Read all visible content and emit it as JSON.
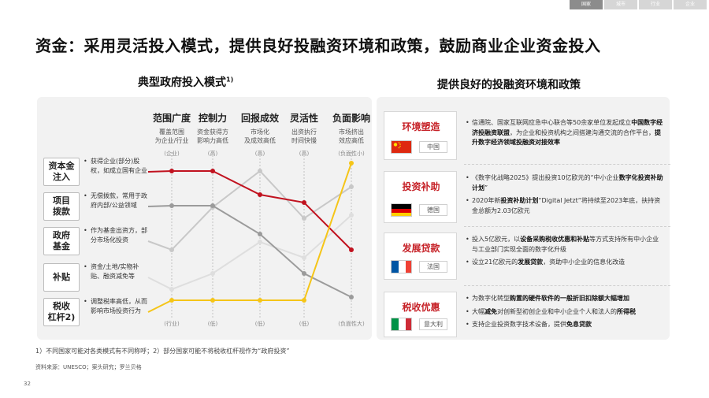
{
  "nav": {
    "tabs": [
      "国家",
      "城市",
      "行业",
      "企业"
    ],
    "active": 0
  },
  "title": "资金：采用灵活投入模式，提供良好投融资环境和政策，鼓励商业企业资金投入",
  "left": {
    "subtitle": "典型政府投入模式",
    "subtitle_sup": "1)",
    "dimensions": [
      {
        "name": "范围广度",
        "desc": [
          "覆盖范围",
          "为企业/行业"
        ],
        "top": "(企业)",
        "bottom": "(行业)"
      },
      {
        "name": "控制力",
        "desc": [
          "资金获得方",
          "影响力高低"
        ],
        "top": "(高)",
        "bottom": "(低)"
      },
      {
        "name": "回报成效",
        "desc": [
          "市场化",
          "及成效高低"
        ],
        "top": "(高)",
        "bottom": "(低)"
      },
      {
        "name": "灵活性",
        "desc": [
          "出资执行",
          "时间快慢"
        ],
        "top": "(高)",
        "bottom": "(低)"
      },
      {
        "name": "负面影响",
        "desc": [
          "市场挤出",
          "效应高低"
        ],
        "top": "(负面性小)",
        "bottom": "(负面性大)"
      }
    ],
    "modes": [
      {
        "name": [
          "资本金",
          "注入"
        ],
        "desc": "获得企业(部分)股权，如成立国有企业",
        "color": "#c1121f",
        "levels": [
          0.1,
          0.1,
          0.25,
          0.3,
          0.6
        ]
      },
      {
        "name": [
          "项目",
          "拨款"
        ],
        "desc": "无偿拨款，常用于政府内部/公益领域",
        "color": "#9b9b9b",
        "levels": [
          0.32,
          0.32,
          0.5,
          0.75,
          0.9
        ]
      },
      {
        "name": [
          "政府",
          "基金"
        ],
        "desc": "作为基金出资方，部分市场化投资",
        "color": "#c8c8c8",
        "levels": [
          0.6,
          0.33,
          0.1,
          0.4,
          0.2
        ]
      },
      {
        "name": [
          "补贴"
        ],
        "desc": "资金/土地/实物补贴、融资减免等",
        "color": "#dedede",
        "levels": [
          0.85,
          0.75,
          0.55,
          0.65,
          0.38
        ]
      },
      {
        "name": [
          "税收",
          "杠杆2)"
        ],
        "desc": "调整税率高低，从而影响市场投资行为",
        "color": "#f5c518",
        "levels": [
          0.92,
          0.92,
          0.92,
          0.92,
          0.05
        ]
      }
    ]
  },
  "right": {
    "subtitle": "提供良好的投融资环境和政策",
    "rows": [
      {
        "label": "环境塑造",
        "country": "中国",
        "flag": "cn",
        "items": [
          [
            {
              "t": "信通院、国家互联网应急中心联合等50余家单位发起成立"
            },
            {
              "t": "中国数字经济投融资联盟",
              "b": true
            },
            {
              "t": "，为企业和投资机构之间搭建沟通交流的合作平台，"
            },
            {
              "t": "提升数字经济领域投融资对接效率",
              "b": true
            }
          ]
        ]
      },
      {
        "label": "投资补助",
        "country": "德国",
        "flag": "de",
        "items": [
          [
            {
              "t": "《数字化战略2025》提出投资10亿欧元的“中小企业"
            },
            {
              "t": "数字化投资补助计划",
              "b": true
            },
            {
              "t": "”"
            }
          ],
          [
            {
              "t": "2020年新"
            },
            {
              "t": "投资补助计划",
              "b": true
            },
            {
              "t": "“Digital Jetzt“将持续至2023年底，扶持资金总额为2.03亿欧元"
            }
          ]
        ]
      },
      {
        "label": "发展贷款",
        "country": "法国",
        "flag": "fr",
        "items": [
          [
            {
              "t": "投入5亿欧元，以"
            },
            {
              "t": "设备采购税收优惠和补贴",
              "b": true
            },
            {
              "t": "等方式支持所有中小企业与工业部门实现全面的数字化升级"
            }
          ],
          [
            {
              "t": "设立21亿欧元的"
            },
            {
              "t": "发展贷款",
              "b": true
            },
            {
              "t": "，资助中小企业的信息化改造"
            }
          ]
        ]
      },
      {
        "label": "税收优惠",
        "country": "意大利",
        "flag": "it",
        "items": [
          [
            {
              "t": "为数字化转型"
            },
            {
              "t": "购置的硬件软件的一般折旧扣除额大幅增加",
              "b": true
            }
          ],
          [
            {
              "t": "大幅"
            },
            {
              "t": "减免",
              "b": true
            },
            {
              "t": "对创新型初创企业和中小企业个人和法人的"
            },
            {
              "t": "所得税",
              "b": true
            }
          ],
          [
            {
              "t": "支持企业投资数字技术设备，提供"
            },
            {
              "t": "免息贷款",
              "b": true
            }
          ]
        ]
      }
    ]
  },
  "footnote": "1）不同国家可能对各类模式有不同称呼；2）部分国家可能不将税收杠杆视作为“政府投资”",
  "source": "资料来源：UNESCO；案头研究；罗兰贝格",
  "page_number": "32"
}
